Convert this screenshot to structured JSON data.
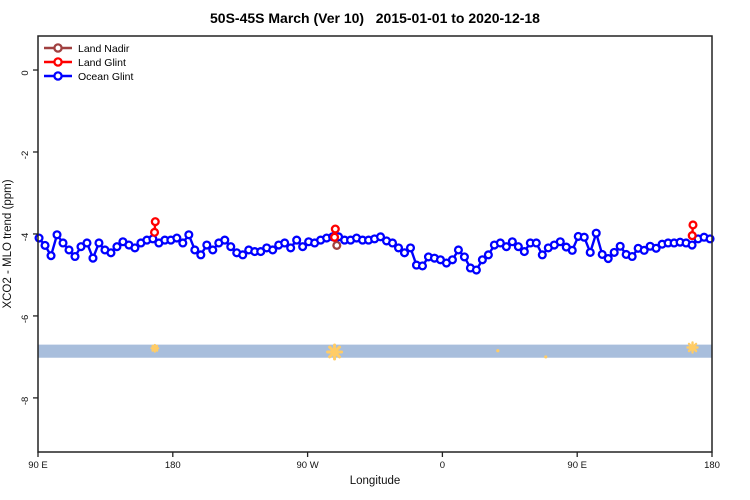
{
  "window": {
    "title": "50S-45S March (Ver 10)   2015-01-01 to 2020-12-18"
  },
  "chart_data": {
    "type": "line",
    "title": "50S-45S March (Ver 10)   2015-01-01 to 2020-12-18",
    "xlabel": "Longitude",
    "ylabel": "XCO2 - MLO trend (ppm)",
    "grid": false,
    "x_range": [
      90,
      540
    ],
    "ylim": [
      -9.32,
      0.83
    ],
    "x_ticks": [
      {
        "value": 90,
        "label": "90 E"
      },
      {
        "value": 180,
        "label": "180"
      },
      {
        "value": 270,
        "label": "90 W"
      },
      {
        "value": 360,
        "label": "0"
      },
      {
        "value": 450,
        "label": "90 E"
      },
      {
        "value": 540,
        "label": "180"
      }
    ],
    "y_ticks": [
      {
        "value": 0,
        "label": "0"
      },
      {
        "value": -2,
        "label": "-2"
      },
      {
        "value": -4,
        "label": "-4"
      },
      {
        "value": -6,
        "label": "-6"
      },
      {
        "value": -8,
        "label": "-8"
      }
    ],
    "legend": {
      "position": "top-left",
      "entries": [
        {
          "label": "Land Nadir",
          "color": "#A04040"
        },
        {
          "label": "Land Glint",
          "color": "#FF0000"
        },
        {
          "label": "Ocean Glint",
          "color": "#0000FF"
        }
      ]
    },
    "band": {
      "color": "#A8BEDC",
      "y_top": -6.7,
      "y_bottom": -7.02
    },
    "orange_marks": {
      "color": "#FFCC66",
      "points": [
        {
          "x": 168,
          "y": -6.79,
          "size": "small"
        },
        {
          "x": 288,
          "y": -6.88,
          "size": "large"
        },
        {
          "x": 397,
          "y": -6.85,
          "size": "dot"
        },
        {
          "x": 429,
          "y": -7.0,
          "size": "dot"
        },
        {
          "x": 527,
          "y": -6.77,
          "size": "medium"
        }
      ]
    },
    "series": [
      {
        "name": "Land Nadir",
        "color": "#A04040",
        "points": [
          [
            288.9,
            -4.1
          ],
          [
            289.5,
            -4.28
          ]
        ]
      },
      {
        "name": "Land Glint",
        "color": "#FF0000",
        "groups": [
          [
            [
              168.3,
              -3.7
            ],
            [
              167.8,
              -3.96
            ]
          ],
          [
            [
              288.5,
              -3.88
            ],
            [
              288.0,
              -4.08
            ]
          ],
          [
            [
              527.3,
              -3.78
            ],
            [
              526.8,
              -4.04
            ]
          ]
        ]
      },
      {
        "name": "Ocean Glint",
        "color": "#0000FF",
        "x_start": 90.7,
        "x_step": 4.0,
        "values": [
          -4.1,
          -4.28,
          -4.53,
          -4.02,
          -4.22,
          -4.39,
          -4.55,
          -4.31,
          -4.22,
          -4.59,
          -4.22,
          -4.39,
          -4.46,
          -4.31,
          -4.19,
          -4.27,
          -4.34,
          -4.22,
          -4.15,
          -4.12,
          -4.22,
          -4.15,
          -4.15,
          -4.1,
          -4.22,
          -4.02,
          -4.39,
          -4.51,
          -4.27,
          -4.39,
          -4.22,
          -4.15,
          -4.31,
          -4.46,
          -4.51,
          -4.39,
          -4.43,
          -4.43,
          -4.34,
          -4.39,
          -4.27,
          -4.22,
          -4.34,
          -4.15,
          -4.31,
          -4.19,
          -4.22,
          -4.15,
          -4.1,
          -4.07,
          -4.07,
          -4.15,
          -4.15,
          -4.1,
          -4.15,
          -4.15,
          -4.12,
          -4.07,
          -4.17,
          -4.22,
          -4.34,
          -4.46,
          -4.34,
          -4.76,
          -4.78,
          -4.56,
          -4.59,
          -4.63,
          -4.71,
          -4.63,
          -4.39,
          -4.56,
          -4.83,
          -4.88,
          -4.63,
          -4.51,
          -4.27,
          -4.22,
          -4.31,
          -4.19,
          -4.31,
          -4.43,
          -4.22,
          -4.22,
          -4.51,
          -4.34,
          -4.27,
          -4.19,
          -4.32,
          -4.4,
          -4.06,
          -4.08,
          -4.45,
          -3.98,
          -4.5,
          -4.6,
          -4.45,
          -4.3,
          -4.5,
          -4.55,
          -4.35,
          -4.4,
          -4.3,
          -4.35,
          -4.25,
          -4.22,
          -4.22,
          -4.2,
          -4.22,
          -4.27,
          -4.12,
          -4.08,
          -4.12
        ]
      }
    ]
  }
}
